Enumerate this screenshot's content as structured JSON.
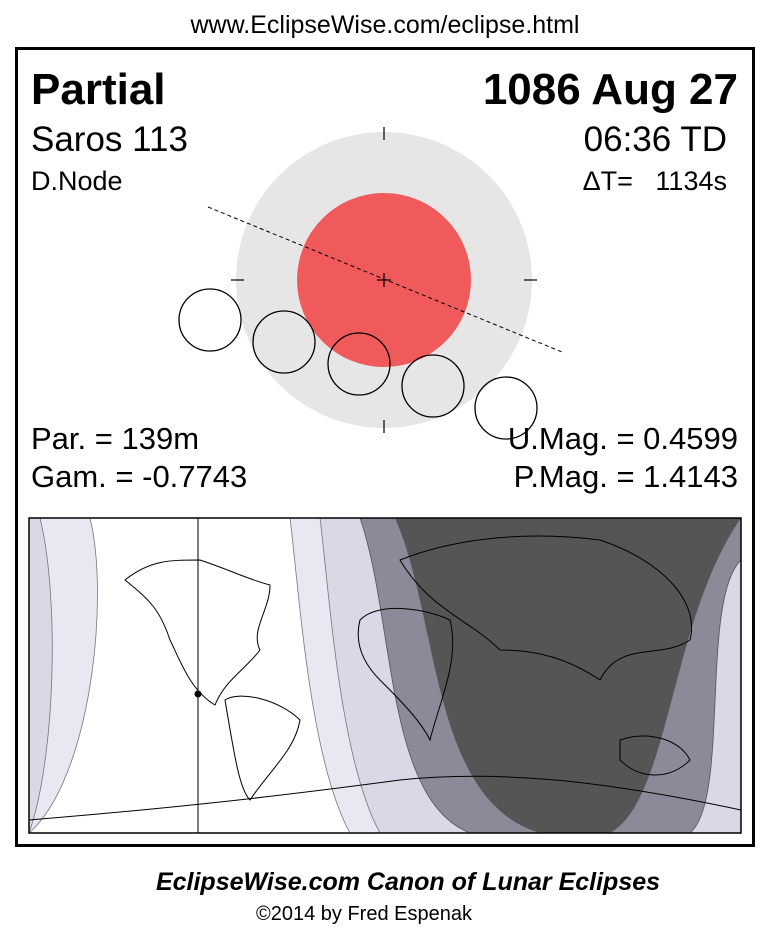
{
  "header_url": "www.EclipseWise.com/eclipse.html",
  "eclipse": {
    "type": "Partial",
    "date": "1086 Aug 27",
    "saros": "Saros 113",
    "time": "06:36 TD",
    "node": "D.Node",
    "delta_t": "ΔT=   1134s",
    "partial_duration": "Par. = 139m",
    "gamma": "Gam. = -0.7743",
    "umbral_mag": "U.Mag. = 0.4599",
    "penumbral_mag": "P.Mag. = 1.4143"
  },
  "colors": {
    "penumbra": "#e6e6e6",
    "umbra": "#f05a5a",
    "map_dark": "#555555",
    "map_mid": "#8a8a98",
    "map_light": "#d8d8e6",
    "map_lighter": "#e8e8f2"
  },
  "footer": {
    "title": "EclipseWise.com Canon of Lunar Eclipses",
    "copyright": "©2014 by Fred Espenak"
  }
}
